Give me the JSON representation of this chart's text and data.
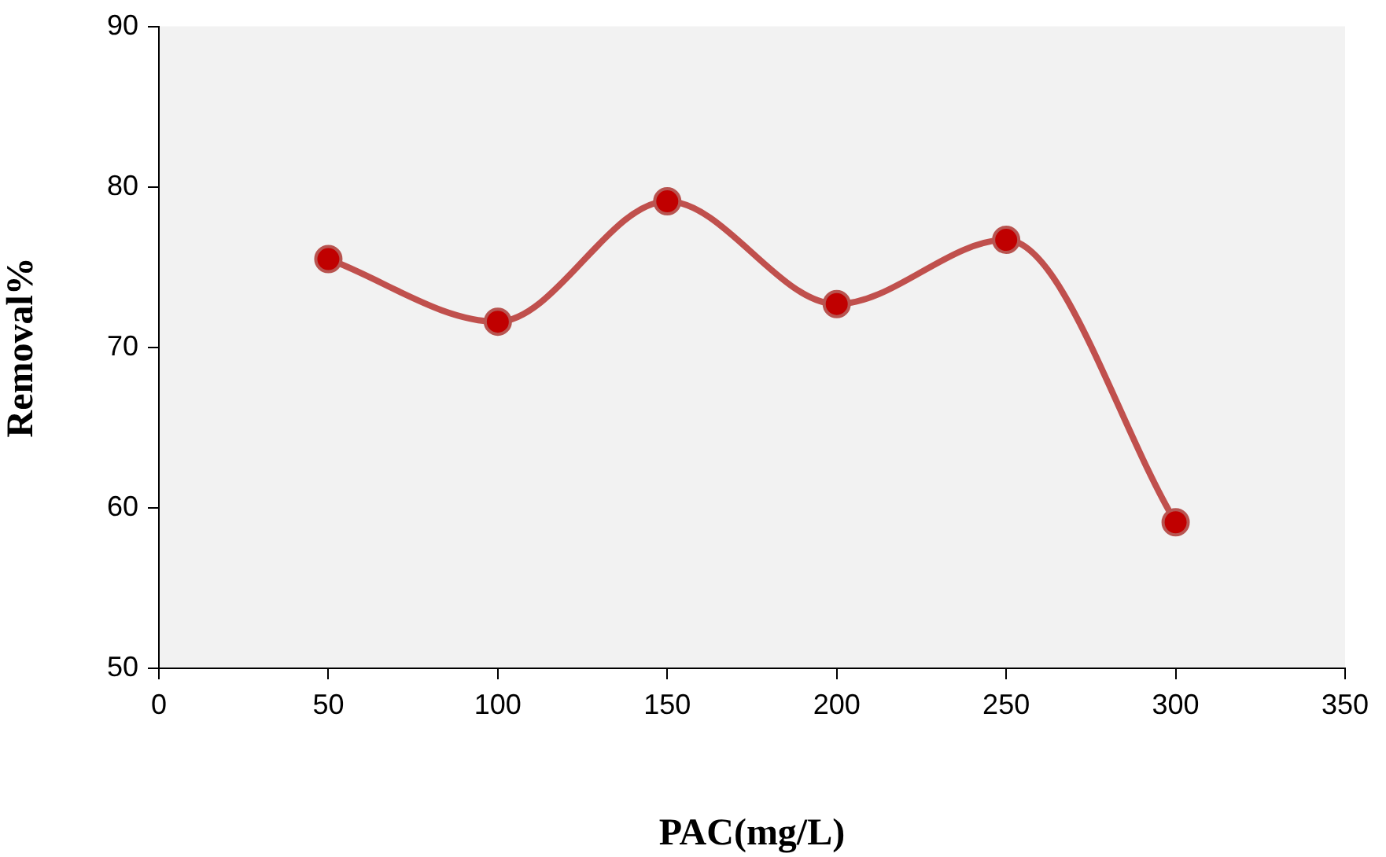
{
  "chart_data": {
    "type": "line",
    "xlabel": "PAC(mg/L)",
    "ylabel": "Removal%",
    "x": [
      50,
      100,
      150,
      200,
      250,
      300
    ],
    "series": [
      {
        "color": "#c0504d",
        "values": [
          75.5,
          71.6,
          79.1,
          72.7,
          76.7,
          59.1
        ]
      }
    ],
    "xlim": [
      0,
      350
    ],
    "xticks": [
      0,
      50,
      100,
      150,
      200,
      250,
      300,
      350
    ],
    "ylim": [
      50,
      90
    ],
    "yticks": [
      50,
      60,
      70,
      80,
      90
    ],
    "grid": false,
    "legend": false,
    "marker": "circle",
    "line_style": "solid"
  }
}
